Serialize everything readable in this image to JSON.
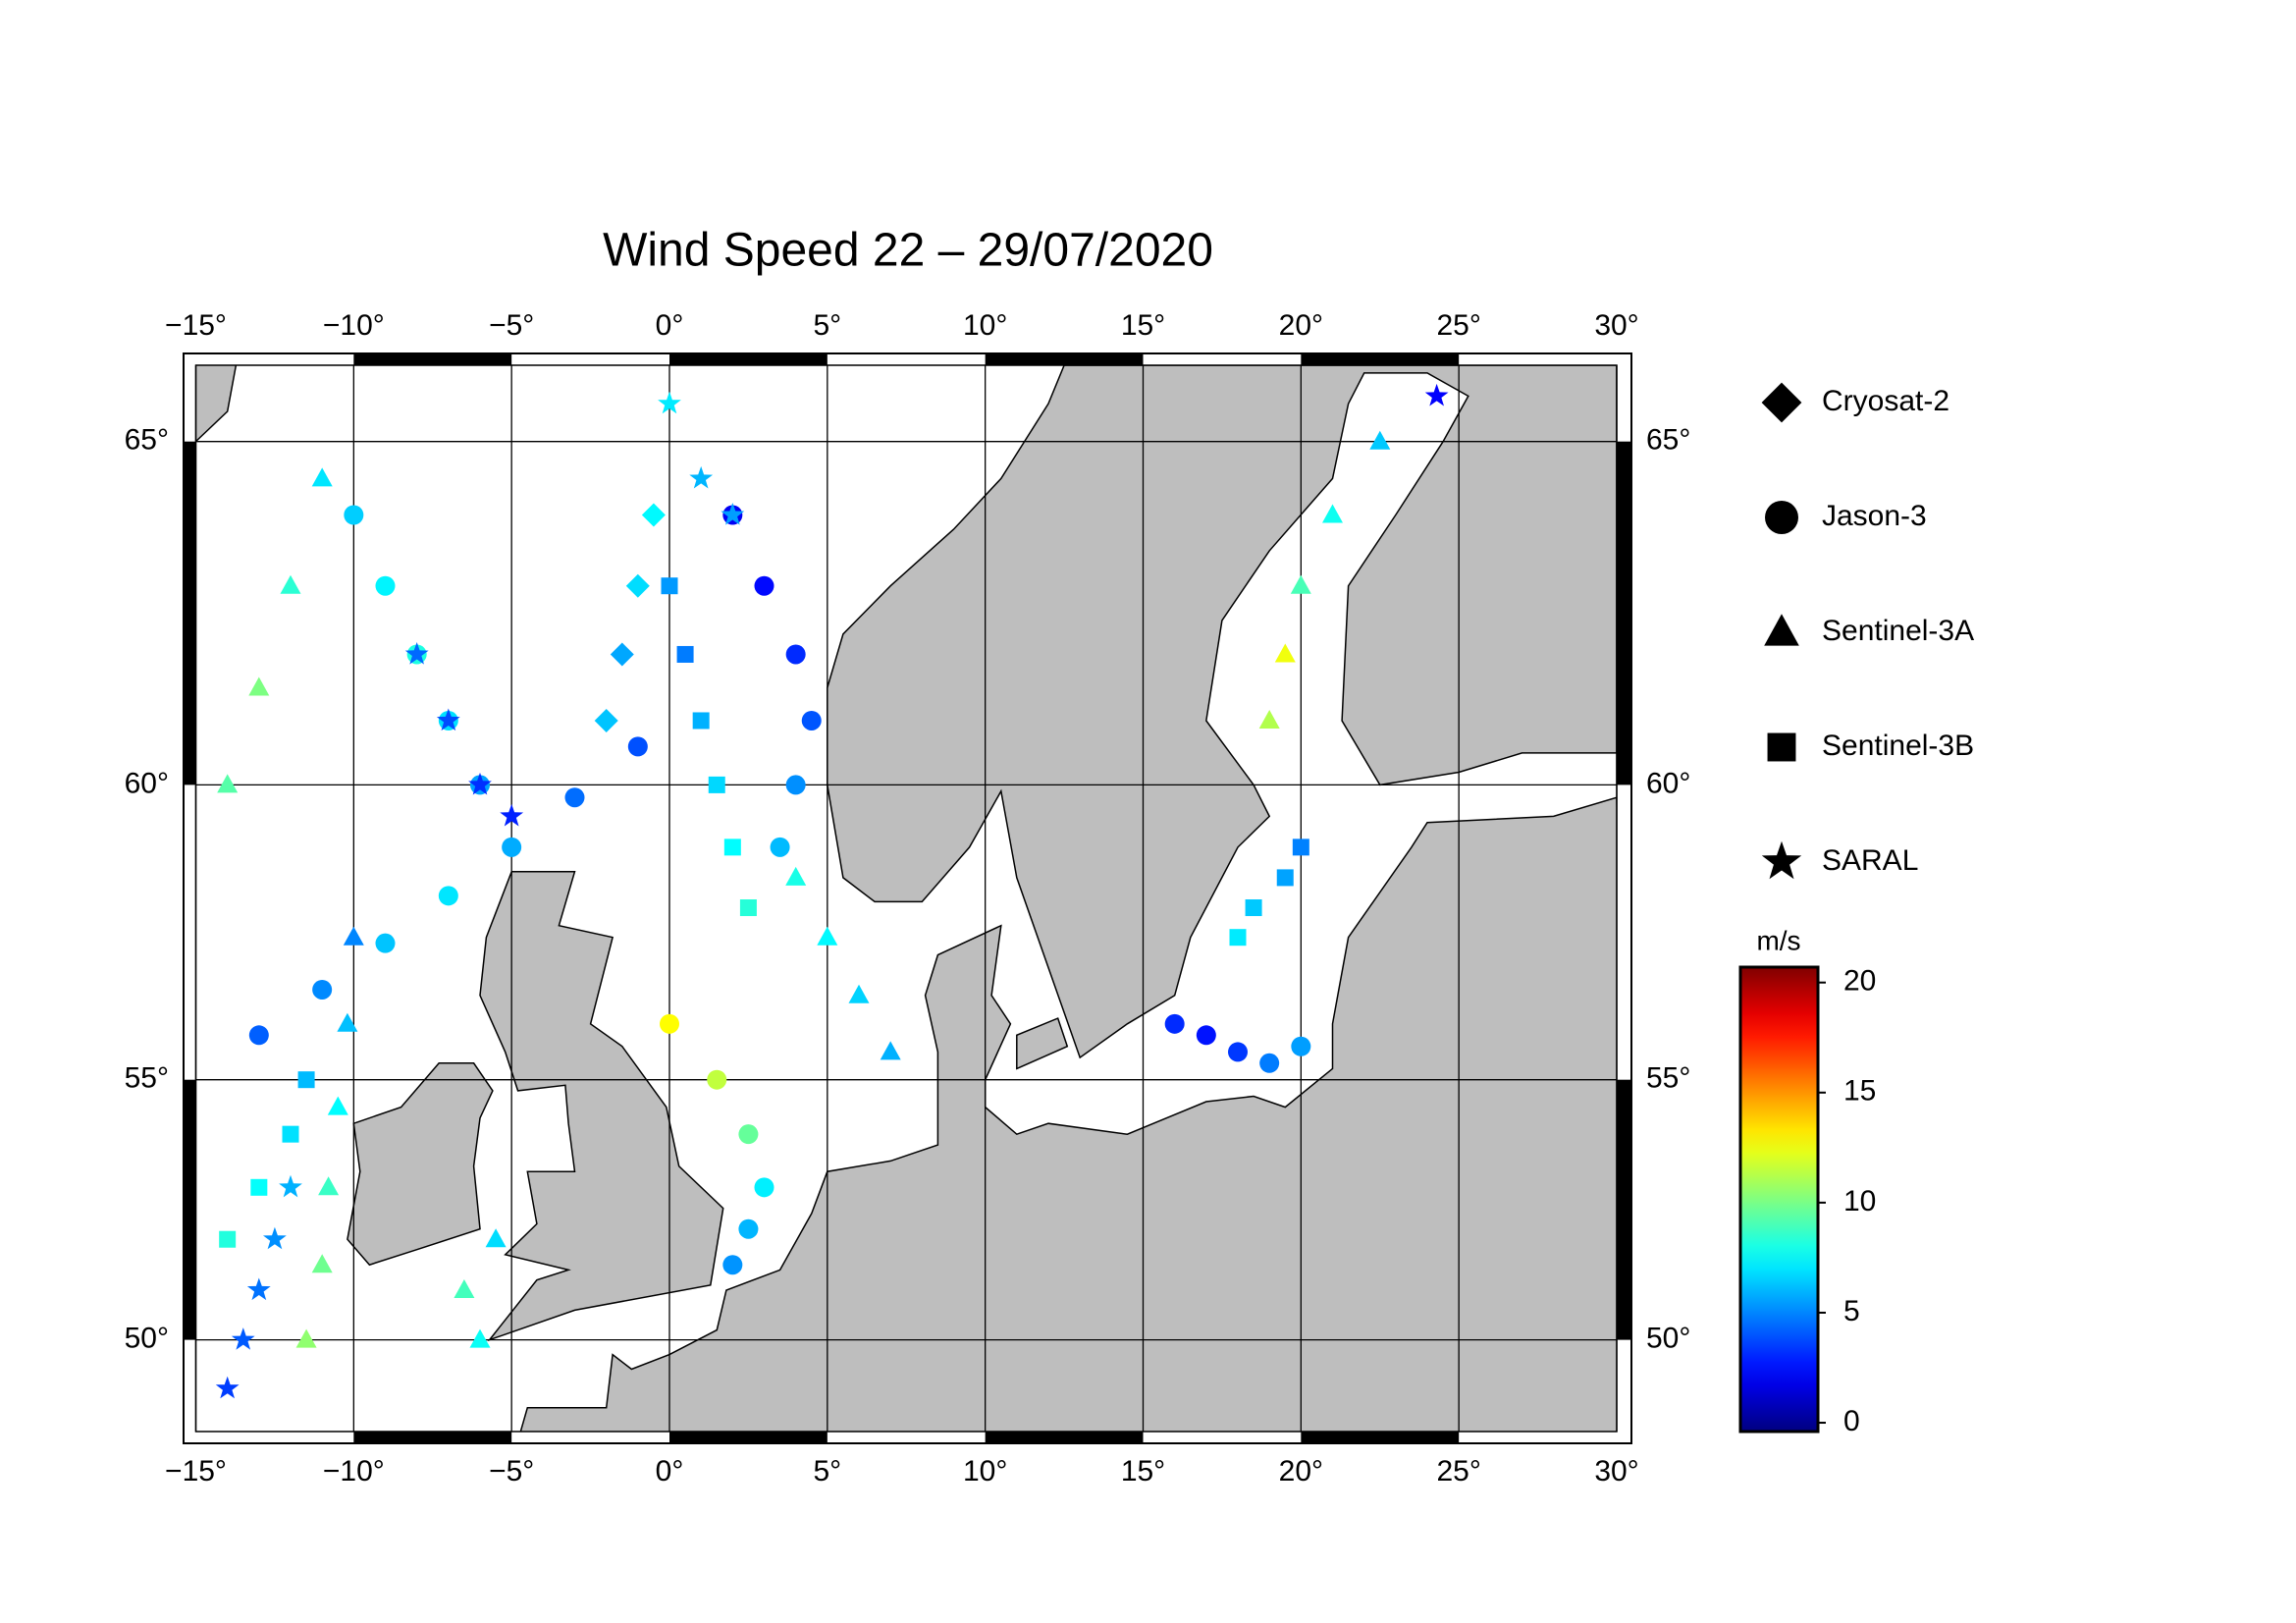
{
  "chart_data": {
    "type": "scatter",
    "title": "Wind Speed 22 – 29/07/2020",
    "colormap": "jet",
    "colorbar_label": "m/s",
    "clim": [
      -0.4,
      20.7
    ],
    "cticks": [
      0,
      5,
      10,
      15,
      20
    ],
    "xlim": [
      -15,
      30
    ],
    "ylim": [
      48.1,
      66.0
    ],
    "projection": "mercator",
    "grid": true,
    "xticks": [
      {
        "value": -15,
        "label": "−15°"
      },
      {
        "value": -10,
        "label": "−10°"
      },
      {
        "value": -5,
        "label": "−5°"
      },
      {
        "value": 0,
        "label": "0°"
      },
      {
        "value": 5,
        "label": "5°"
      },
      {
        "value": 10,
        "label": "10°"
      },
      {
        "value": 15,
        "label": "15°"
      },
      {
        "value": 20,
        "label": "20°"
      },
      {
        "value": 25,
        "label": "25°"
      },
      {
        "value": 30,
        "label": "30°"
      }
    ],
    "yticks": [
      {
        "value": 50,
        "label": "50°"
      },
      {
        "value": 55,
        "label": "55°"
      },
      {
        "value": 60,
        "label": "60°"
      },
      {
        "value": 65,
        "label": "65°"
      }
    ],
    "series": [
      {
        "name": "Cryosat-2",
        "marker": "diamond",
        "x": [
          -2,
          -1.5,
          -1,
          -0.5
        ],
        "y": [
          61,
          62,
          63,
          64
        ],
        "values": [
          6.3,
          5.7,
          6.8,
          7.4
        ]
      },
      {
        "name": "Jason-3",
        "marker": "circle",
        "x": [
          -13,
          -11,
          -9,
          -7,
          -5,
          -3,
          -1,
          0,
          1.5,
          2.5,
          3,
          2.5,
          2,
          16,
          17,
          18,
          19,
          20,
          2,
          3,
          4,
          4.5,
          4,
          3.5,
          -10,
          -9,
          -8,
          -7,
          -6
        ],
        "y": [
          55.8,
          56.6,
          57.4,
          58.2,
          59,
          59.8,
          60.6,
          56,
          55,
          54,
          53,
          52.2,
          51.5,
          56,
          55.8,
          55.5,
          55.3,
          55.6,
          64,
          63,
          62,
          61,
          60,
          59,
          64,
          63,
          62,
          61,
          60
        ],
        "values": [
          4.2,
          5.1,
          6.3,
          7.0,
          5.8,
          4.5,
          3.9,
          12.8,
          11.5,
          9.6,
          7.2,
          6.0,
          5.3,
          3.1,
          2.6,
          3.4,
          4.8,
          5.5,
          2.0,
          2.4,
          3.1,
          4.0,
          5.2,
          6.1,
          6.5,
          7.3,
          8.1,
          6.9,
          5.6
        ]
      },
      {
        "name": "Sentinel-3A",
        "marker": "triangle",
        "x": [
          -11.5,
          -11,
          -10.8,
          -10.5,
          -10.2,
          -10,
          4,
          5,
          6,
          7,
          19,
          19.5,
          20,
          21,
          22.5,
          -14,
          -13,
          -12,
          -11,
          -6,
          -6.5,
          -5.5
        ],
        "y": [
          50,
          51.5,
          53,
          54.5,
          56,
          57.5,
          58.5,
          57.5,
          56.5,
          55.5,
          61,
          62,
          63,
          64,
          65,
          60,
          61.5,
          63,
          64.5,
          50,
          51,
          52
        ],
        "values": [
          10.5,
          9.8,
          8.7,
          7.5,
          6.2,
          5.0,
          8.0,
          7.4,
          6.6,
          5.9,
          11.2,
          12.5,
          9.0,
          7.8,
          6.4,
          9.3,
          10.1,
          8.4,
          7.0,
          7.7,
          8.9,
          6.8
        ]
      },
      {
        "name": "Sentinel-3B",
        "marker": "square",
        "x": [
          -14,
          -13,
          -12,
          -11.5,
          0,
          0.5,
          1,
          1.5,
          2,
          2.5,
          18,
          18.5,
          19.5,
          20
        ],
        "y": [
          52,
          53,
          54,
          55,
          63,
          62,
          61,
          60,
          59,
          58,
          57.5,
          58,
          58.5,
          59
        ],
        "values": [
          8.2,
          7.6,
          6.9,
          6.1,
          5.4,
          4.8,
          5.9,
          6.7,
          7.5,
          8.3,
          7.1,
          6.4,
          5.6,
          4.9
        ]
      },
      {
        "name": "SARAL",
        "marker": "star",
        "x": [
          -14,
          -13.5,
          -13,
          -12.5,
          -12,
          -8,
          -7,
          -6,
          -5,
          1,
          2,
          0,
          24.3
        ],
        "y": [
          49,
          50,
          51,
          52,
          53,
          62,
          61,
          60,
          59.5,
          64.5,
          64,
          65.5,
          65.6
        ],
        "values": [
          3.5,
          4.1,
          4.6,
          5.2,
          5.9,
          4.4,
          3.8,
          3.2,
          2.9,
          6.0,
          5.5,
          7.1,
          2.2
        ]
      }
    ]
  }
}
